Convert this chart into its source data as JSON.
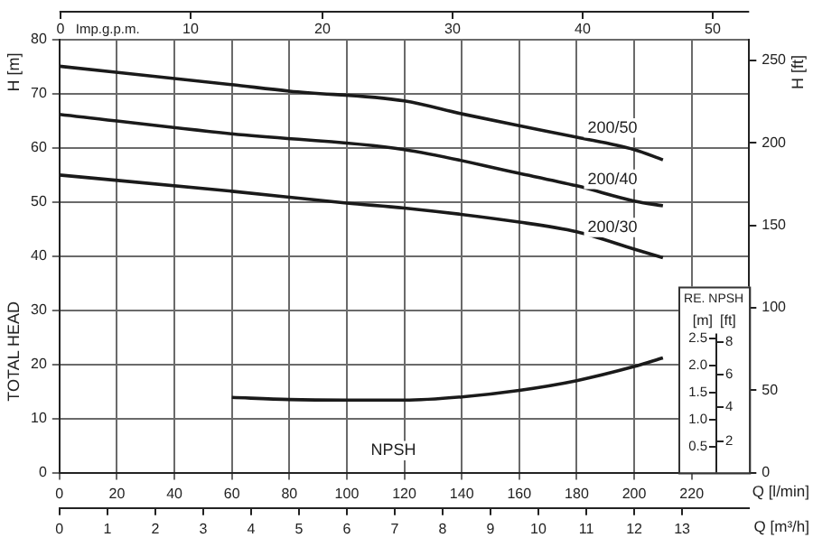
{
  "chart_data": {
    "type": "line",
    "x2label": "Q [m³/h]",
    "xlabel": "Q [l/min]",
    "ylabel": "H [m]",
    "y2label": "H [ft]",
    "y3label": "[m]",
    "annotations": [
      "TOTAL HEAD",
      "RE. NPSH",
      "[ft]",
      "2",
      "4",
      "6",
      "8",
      "Imp.g.p.m.",
      "0",
      "10",
      "20",
      "30",
      "40",
      "50"
    ],
    "xlim": [
      0,
      240
    ],
    "xticks": [
      0,
      20,
      40,
      60,
      80,
      100,
      120,
      140,
      160,
      180,
      200,
      220
    ],
    "x2lim": [
      0,
      14.4
    ],
    "x2ticks": [
      0,
      1,
      2,
      3,
      4,
      5,
      6,
      7,
      8,
      9,
      10,
      11,
      12,
      13
    ],
    "ylim": [
      0,
      80
    ],
    "yticks": [
      0,
      10,
      20,
      30,
      40,
      50,
      60,
      70,
      80
    ],
    "y2lim": [
      0,
      262.5
    ],
    "y2ticks": [
      0,
      50,
      100,
      150,
      200,
      250
    ],
    "y3lim": [
      0,
      8
    ],
    "y3ticks": [
      0.5,
      {
        "value": 1,
        "label": "1.0"
      },
      1.5,
      {
        "value": 2,
        "label": "2.0"
      },
      2.5
    ],
    "grid": true,
    "legend": false,
    "marker": "none",
    "line_style": "solid",
    "series": [
      {
        "name": "200/50",
        "color": "#1a1a1a",
        "x": [
          0,
          60,
          80,
          120,
          140,
          160,
          180,
          200,
          210
        ],
        "values": [
          75.1,
          71.7,
          70.5,
          68.7,
          66.3,
          64.1,
          62.0,
          59.7,
          57.8
        ]
      },
      {
        "name": "200/40",
        "color": "#1a1a1a",
        "x": [
          0,
          60,
          120,
          160,
          180,
          200,
          210
        ],
        "values": [
          66.2,
          62.6,
          59.7,
          55.3,
          53.0,
          50.2,
          49.3
        ]
      },
      {
        "name": "200/30",
        "color": "#1a1a1a",
        "x": [
          0,
          60,
          100,
          120,
          160,
          180,
          200,
          210
        ],
        "values": [
          55.0,
          52.0,
          49.8,
          48.9,
          46.3,
          44.5,
          41.3,
          39.7
        ]
      },
      {
        "name": "NPSH",
        "axis": "y3",
        "color": "#1a1a1a",
        "x": [
          60,
          80,
          100,
          120,
          140,
          160,
          180,
          200,
          210
        ],
        "values": [
          1.39,
          1.35,
          1.34,
          1.34,
          1.4,
          1.52,
          1.7,
          1.96,
          2.12
        ]
      }
    ]
  }
}
